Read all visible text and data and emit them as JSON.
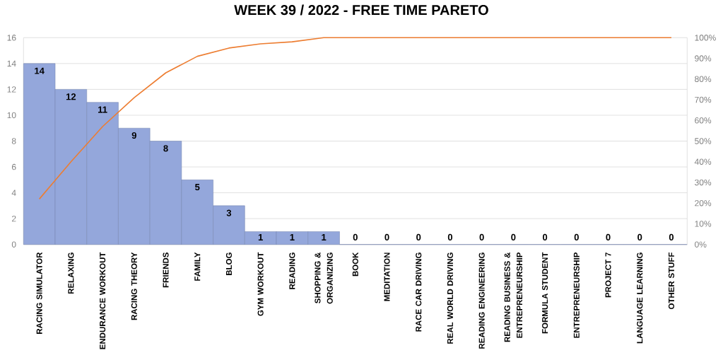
{
  "chart_data": {
    "type": "bar",
    "title": "WEEK 39 / 2022 - FREE TIME PARETO",
    "categories": [
      "RACING SIMULATOR",
      "RELAXING",
      "ENDURANCE WORKOUT",
      "RACING THEORY",
      "FRIENDS",
      "FAMILY",
      "BLOG",
      "GYM WORKOUT",
      "READING",
      "SHOPPING & ORGANIZING",
      "BOOK",
      "MEDITATION",
      "RACE CAR DRIVING",
      "REAL WORLD DRIVING",
      "READING ENGINEERING",
      "READING BUSINESS & ENTREPRENEURSHIP",
      "FORMULA STUDENT",
      "ENTREPRENEURSHIP",
      "PROJECT 7",
      "LANGUAGE LEARNING",
      "OTHER STUFF"
    ],
    "series": [
      {
        "color": "#94a7db",
        "data_labels": true,
        "values": [
          14,
          12,
          11,
          9,
          8,
          5,
          3,
          1,
          1,
          1,
          0,
          0,
          0,
          0,
          0,
          0,
          0,
          0,
          0,
          0,
          0
        ]
      },
      {
        "type": "line",
        "axis": "y2",
        "color": "#ed7d31",
        "values": [
          22,
          40,
          57,
          71,
          83,
          91,
          95,
          97,
          98,
          100,
          100,
          100,
          100,
          100,
          100,
          100,
          100,
          100,
          100,
          100,
          100
        ]
      }
    ],
    "ylim": [
      0,
      16
    ],
    "yticks": [
      0,
      2,
      4,
      6,
      8,
      10,
      12,
      14,
      16
    ],
    "y2lim": [
      0,
      100
    ],
    "y2ticks": [
      {
        "value": 0,
        "label": "0%"
      },
      {
        "value": 10,
        "label": "10%"
      },
      {
        "value": 20,
        "label": "20%"
      },
      {
        "value": 30,
        "label": "30%"
      },
      {
        "value": 40,
        "label": "40%"
      },
      {
        "value": 50,
        "label": "50%"
      },
      {
        "value": 60,
        "label": "60%"
      },
      {
        "value": 70,
        "label": "70%"
      },
      {
        "value": 80,
        "label": "80%"
      },
      {
        "value": 90,
        "label": "90%"
      },
      {
        "value": 100,
        "label": "100%"
      }
    ],
    "grid": "y"
  }
}
